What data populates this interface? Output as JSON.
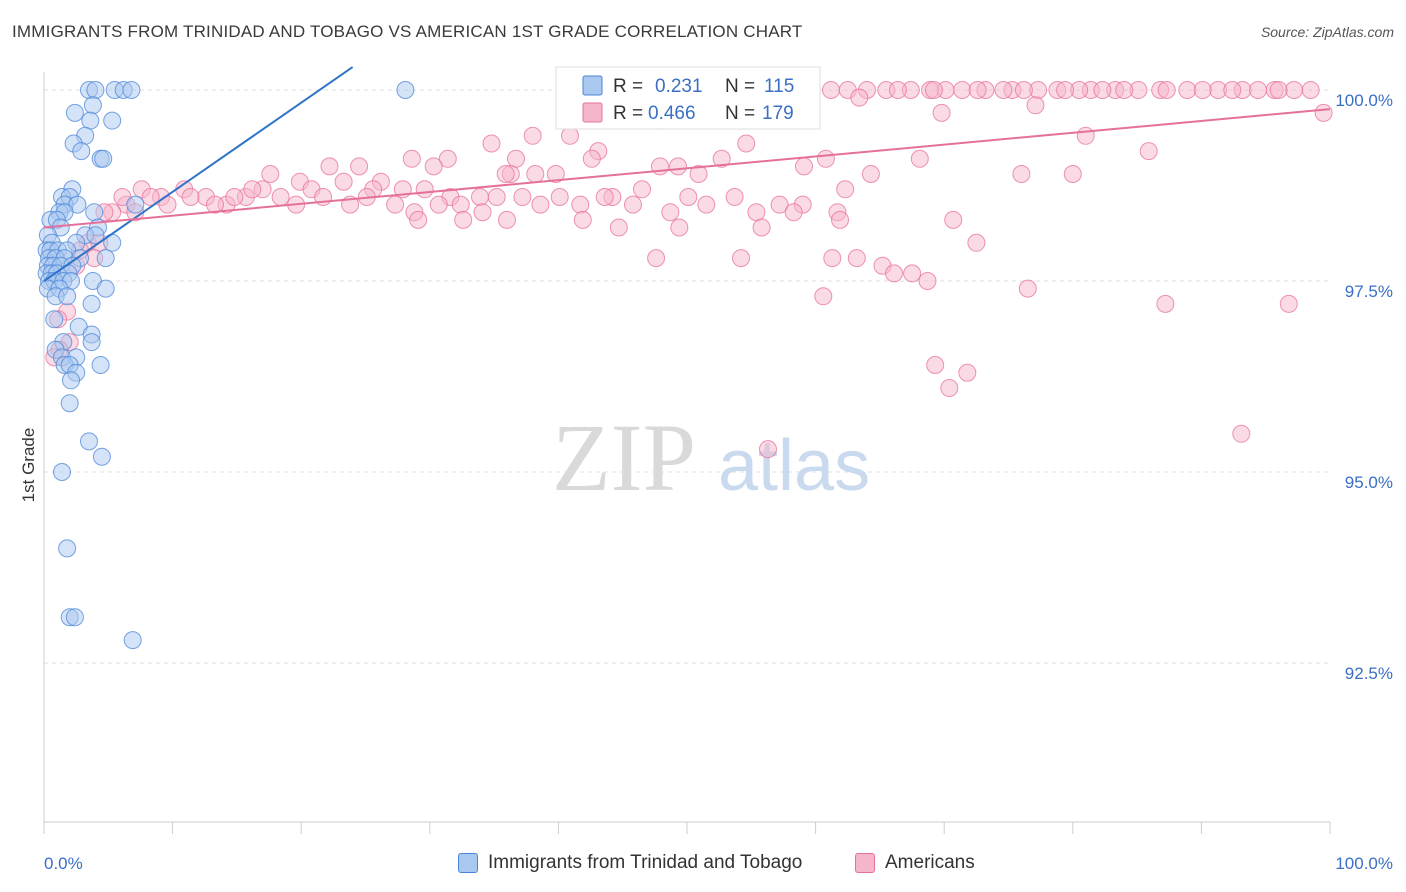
{
  "header": {
    "title": "IMMIGRANTS FROM TRINIDAD AND TOBAGO VS AMERICAN 1ST GRADE CORRELATION CHART",
    "source": "Source: ZipAtlas.com"
  },
  "watermark": {
    "zip": "ZIP",
    "atlas": "atlas"
  },
  "colors": {
    "blue": "#4a86d8",
    "blue_fill": "#a9c8f0",
    "pink": "#e8709a",
    "pink_fill": "#f5b6cb",
    "value_text": "#3a6fc4",
    "grid": "#dddddd"
  },
  "legend": {
    "rows": [
      {
        "r_label": "R = ",
        "r_value": "0.231",
        "n_label": "N = ",
        "n_value": "115",
        "color": "blue"
      },
      {
        "r_label": "R = ",
        "r_value": "0.466",
        "n_label": "N = ",
        "n_value": "179",
        "color": "pink"
      }
    ]
  },
  "bottom_legend": {
    "items": [
      {
        "label": "Immigrants from Trinidad and Tobago",
        "color": "blue"
      },
      {
        "label": "Americans",
        "color": "pink"
      }
    ]
  },
  "chart_data": {
    "type": "scatter",
    "title": "IMMIGRANTS FROM TRINIDAD AND TOBAGO VS AMERICAN 1ST GRADE CORRELATION CHART",
    "xlabel": "",
    "ylabel": "1st Grade",
    "xlim": [
      0,
      100
    ],
    "ylim": [
      90.0,
      100.3
    ],
    "x_tick_labels": [
      "0.0%",
      "100.0%"
    ],
    "y_ticks": [
      92.5,
      95.0,
      97.5,
      100.0
    ],
    "y_tick_labels": [
      "92.5%",
      "95.0%",
      "97.5%",
      "100.0%"
    ],
    "grid": true,
    "series": [
      {
        "name": "Immigrants from Trinidad and Tobago",
        "color": "blue",
        "trend": {
          "x": [
            0,
            24
          ],
          "y": [
            97.5,
            100.3
          ]
        },
        "points": [
          [
            3.5,
            100
          ],
          [
            4.0,
            100
          ],
          [
            5.5,
            100
          ],
          [
            6.2,
            100
          ],
          [
            6.8,
            100
          ],
          [
            28.1,
            100
          ],
          [
            3.8,
            99.8
          ],
          [
            2.4,
            99.7
          ],
          [
            5.3,
            99.6
          ],
          [
            3.6,
            99.6
          ],
          [
            3.2,
            99.4
          ],
          [
            2.3,
            99.3
          ],
          [
            2.9,
            99.2
          ],
          [
            4.4,
            99.1
          ],
          [
            4.6,
            99.1
          ],
          [
            2.2,
            98.7
          ],
          [
            1.4,
            98.6
          ],
          [
            2.0,
            98.6
          ],
          [
            1.6,
            98.5
          ],
          [
            2.6,
            98.5
          ],
          [
            7.1,
            98.5
          ],
          [
            1.2,
            98.4
          ],
          [
            1.6,
            98.4
          ],
          [
            3.9,
            98.4
          ],
          [
            0.5,
            98.3
          ],
          [
            1.0,
            98.3
          ],
          [
            1.3,
            98.2
          ],
          [
            4.2,
            98.2
          ],
          [
            0.3,
            98.1
          ],
          [
            3.2,
            98.1
          ],
          [
            4.0,
            98.1
          ],
          [
            0.6,
            98.0
          ],
          [
            2.5,
            98.0
          ],
          [
            5.3,
            98.0
          ],
          [
            0.2,
            97.9
          ],
          [
            0.5,
            97.9
          ],
          [
            1.1,
            97.9
          ],
          [
            1.8,
            97.9
          ],
          [
            0.4,
            97.8
          ],
          [
            0.9,
            97.8
          ],
          [
            1.6,
            97.8
          ],
          [
            2.8,
            97.8
          ],
          [
            4.8,
            97.8
          ],
          [
            0.3,
            97.7
          ],
          [
            0.7,
            97.7
          ],
          [
            1.3,
            97.7
          ],
          [
            2.2,
            97.7
          ],
          [
            0.2,
            97.6
          ],
          [
            0.6,
            97.6
          ],
          [
            1.0,
            97.6
          ],
          [
            1.9,
            97.6
          ],
          [
            0.4,
            97.5
          ],
          [
            0.8,
            97.5
          ],
          [
            1.5,
            97.5
          ],
          [
            2.1,
            97.5
          ],
          [
            3.8,
            97.5
          ],
          [
            0.3,
            97.4
          ],
          [
            1.2,
            97.4
          ],
          [
            4.8,
            97.4
          ],
          [
            0.9,
            97.3
          ],
          [
            1.8,
            97.3
          ],
          [
            3.7,
            97.2
          ],
          [
            0.8,
            97.0
          ],
          [
            2.7,
            96.9
          ],
          [
            3.7,
            96.8
          ],
          [
            1.5,
            96.7
          ],
          [
            3.7,
            96.7
          ],
          [
            0.9,
            96.6
          ],
          [
            1.4,
            96.5
          ],
          [
            2.5,
            96.5
          ],
          [
            1.6,
            96.4
          ],
          [
            2.0,
            96.4
          ],
          [
            4.4,
            96.4
          ],
          [
            2.5,
            96.3
          ],
          [
            2.1,
            96.2
          ],
          [
            2.0,
            95.9
          ],
          [
            3.5,
            95.4
          ],
          [
            4.5,
            95.2
          ],
          [
            1.4,
            95.0
          ],
          [
            1.8,
            94.0
          ],
          [
            2.0,
            93.1
          ],
          [
            2.4,
            93.1
          ],
          [
            6.9,
            92.8
          ]
        ]
      },
      {
        "name": "Americans",
        "color": "pink",
        "trend": {
          "x": [
            0,
            100
          ],
          "y": [
            98.2,
            99.75
          ]
        },
        "points": [
          [
            61.2,
            100
          ],
          [
            65.5,
            100
          ],
          [
            67.4,
            100
          ],
          [
            70.1,
            100
          ],
          [
            71.4,
            100
          ],
          [
            75.3,
            100
          ],
          [
            78.8,
            100
          ],
          [
            81.4,
            100
          ],
          [
            83.3,
            100
          ],
          [
            86.8,
            100
          ],
          [
            88.9,
            100
          ],
          [
            91.3,
            100
          ],
          [
            93.2,
            100
          ],
          [
            95.7,
            100
          ],
          [
            98.5,
            100
          ],
          [
            73.2,
            100
          ],
          [
            77.3,
            100
          ],
          [
            80.5,
            100
          ],
          [
            85.1,
            100
          ],
          [
            90.1,
            100
          ],
          [
            94.4,
            100
          ],
          [
            97.2,
            100
          ],
          [
            64.0,
            100
          ],
          [
            68.9,
            100
          ],
          [
            72.6,
            100
          ],
          [
            76.2,
            100
          ],
          [
            79.4,
            100
          ],
          [
            84.0,
            100
          ],
          [
            87.3,
            100
          ],
          [
            92.4,
            100
          ],
          [
            51.3,
            100
          ],
          [
            57.3,
            100
          ],
          [
            62.5,
            100
          ],
          [
            66.4,
            100
          ],
          [
            82.3,
            100
          ],
          [
            69.2,
            100
          ],
          [
            74.6,
            100
          ],
          [
            96.0,
            100
          ],
          [
            63.4,
            99.9
          ],
          [
            56.4,
            99.9
          ],
          [
            58.7,
            99.8
          ],
          [
            53.9,
            99.8
          ],
          [
            45.2,
            99.7
          ],
          [
            48.1,
            99.6
          ],
          [
            99.5,
            99.7
          ],
          [
            69.8,
            99.7
          ],
          [
            77.1,
            99.8
          ],
          [
            38.0,
            99.4
          ],
          [
            34.8,
            99.3
          ],
          [
            43.1,
            99.2
          ],
          [
            54.6,
            99.3
          ],
          [
            40.9,
            99.4
          ],
          [
            28.6,
            99.1
          ],
          [
            31.4,
            99.1
          ],
          [
            36.7,
            99.1
          ],
          [
            42.6,
            99.1
          ],
          [
            47.9,
            99.0
          ],
          [
            49.3,
            99.0
          ],
          [
            52.7,
            99.1
          ],
          [
            60.8,
            99.1
          ],
          [
            59.1,
            99.0
          ],
          [
            68.1,
            99.1
          ],
          [
            81.0,
            99.4
          ],
          [
            85.9,
            99.2
          ],
          [
            22.2,
            99.0
          ],
          [
            24.5,
            99.0
          ],
          [
            30.3,
            99.0
          ],
          [
            36.3,
            98.9
          ],
          [
            38.2,
            98.9
          ],
          [
            35.9,
            98.9
          ],
          [
            39.8,
            98.9
          ],
          [
            50.9,
            98.9
          ],
          [
            64.3,
            98.9
          ],
          [
            76.0,
            98.9
          ],
          [
            80.0,
            98.9
          ],
          [
            17.6,
            98.9
          ],
          [
            19.9,
            98.8
          ],
          [
            23.3,
            98.8
          ],
          [
            26.2,
            98.8
          ],
          [
            20.8,
            98.7
          ],
          [
            25.6,
            98.7
          ],
          [
            27.9,
            98.7
          ],
          [
            29.6,
            98.7
          ],
          [
            31.6,
            98.6
          ],
          [
            33.9,
            98.6
          ],
          [
            37.2,
            98.6
          ],
          [
            40.1,
            98.6
          ],
          [
            44.2,
            98.6
          ],
          [
            46.5,
            98.7
          ],
          [
            50.1,
            98.6
          ],
          [
            53.7,
            98.6
          ],
          [
            57.2,
            98.5
          ],
          [
            59.0,
            98.5
          ],
          [
            62.3,
            98.7
          ],
          [
            7.6,
            98.7
          ],
          [
            9.1,
            98.6
          ],
          [
            10.9,
            98.7
          ],
          [
            12.6,
            98.6
          ],
          [
            14.2,
            98.5
          ],
          [
            15.7,
            98.6
          ],
          [
            17.0,
            98.7
          ],
          [
            18.4,
            98.6
          ],
          [
            19.6,
            98.5
          ],
          [
            21.7,
            98.6
          ],
          [
            23.8,
            98.5
          ],
          [
            25.1,
            98.6
          ],
          [
            27.3,
            98.5
          ],
          [
            28.8,
            98.4
          ],
          [
            30.7,
            98.5
          ],
          [
            32.4,
            98.5
          ],
          [
            34.1,
            98.4
          ],
          [
            35.2,
            98.6
          ],
          [
            38.6,
            98.5
          ],
          [
            41.7,
            98.5
          ],
          [
            43.6,
            98.6
          ],
          [
            45.8,
            98.5
          ],
          [
            48.7,
            98.4
          ],
          [
            51.5,
            98.5
          ],
          [
            55.4,
            98.4
          ],
          [
            58.3,
            98.4
          ],
          [
            61.7,
            98.4
          ],
          [
            6.4,
            98.5
          ],
          [
            7.1,
            98.4
          ],
          [
            8.3,
            98.6
          ],
          [
            9.6,
            98.5
          ],
          [
            11.4,
            98.6
          ],
          [
            13.3,
            98.5
          ],
          [
            14.8,
            98.6
          ],
          [
            16.2,
            98.7
          ],
          [
            5.3,
            98.4
          ],
          [
            6.1,
            98.6
          ],
          [
            4.7,
            98.4
          ],
          [
            3.4,
            98.0
          ],
          [
            2.8,
            97.9
          ],
          [
            4.3,
            98.0
          ],
          [
            3.9,
            97.8
          ],
          [
            2.5,
            97.7
          ],
          [
            29.1,
            98.3
          ],
          [
            32.6,
            98.3
          ],
          [
            36.0,
            98.3
          ],
          [
            41.9,
            98.3
          ],
          [
            44.7,
            98.2
          ],
          [
            49.4,
            98.2
          ],
          [
            55.8,
            98.2
          ],
          [
            61.9,
            98.3
          ],
          [
            70.7,
            98.3
          ],
          [
            72.5,
            98.0
          ],
          [
            47.6,
            97.8
          ],
          [
            54.2,
            97.8
          ],
          [
            61.3,
            97.8
          ],
          [
            63.2,
            97.8
          ],
          [
            65.2,
            97.7
          ],
          [
            66.1,
            97.6
          ],
          [
            67.5,
            97.6
          ],
          [
            68.7,
            97.5
          ],
          [
            60.6,
            97.3
          ],
          [
            76.5,
            97.4
          ],
          [
            87.2,
            97.2
          ],
          [
            96.8,
            97.2
          ],
          [
            69.3,
            96.4
          ],
          [
            71.8,
            96.3
          ],
          [
            70.4,
            96.1
          ],
          [
            93.1,
            95.5
          ],
          [
            56.3,
            95.3
          ],
          [
            1.8,
            97.1
          ],
          [
            2.0,
            96.7
          ],
          [
            1.2,
            96.6
          ],
          [
            0.8,
            96.5
          ],
          [
            1.1,
            97.0
          ]
        ]
      }
    ]
  }
}
